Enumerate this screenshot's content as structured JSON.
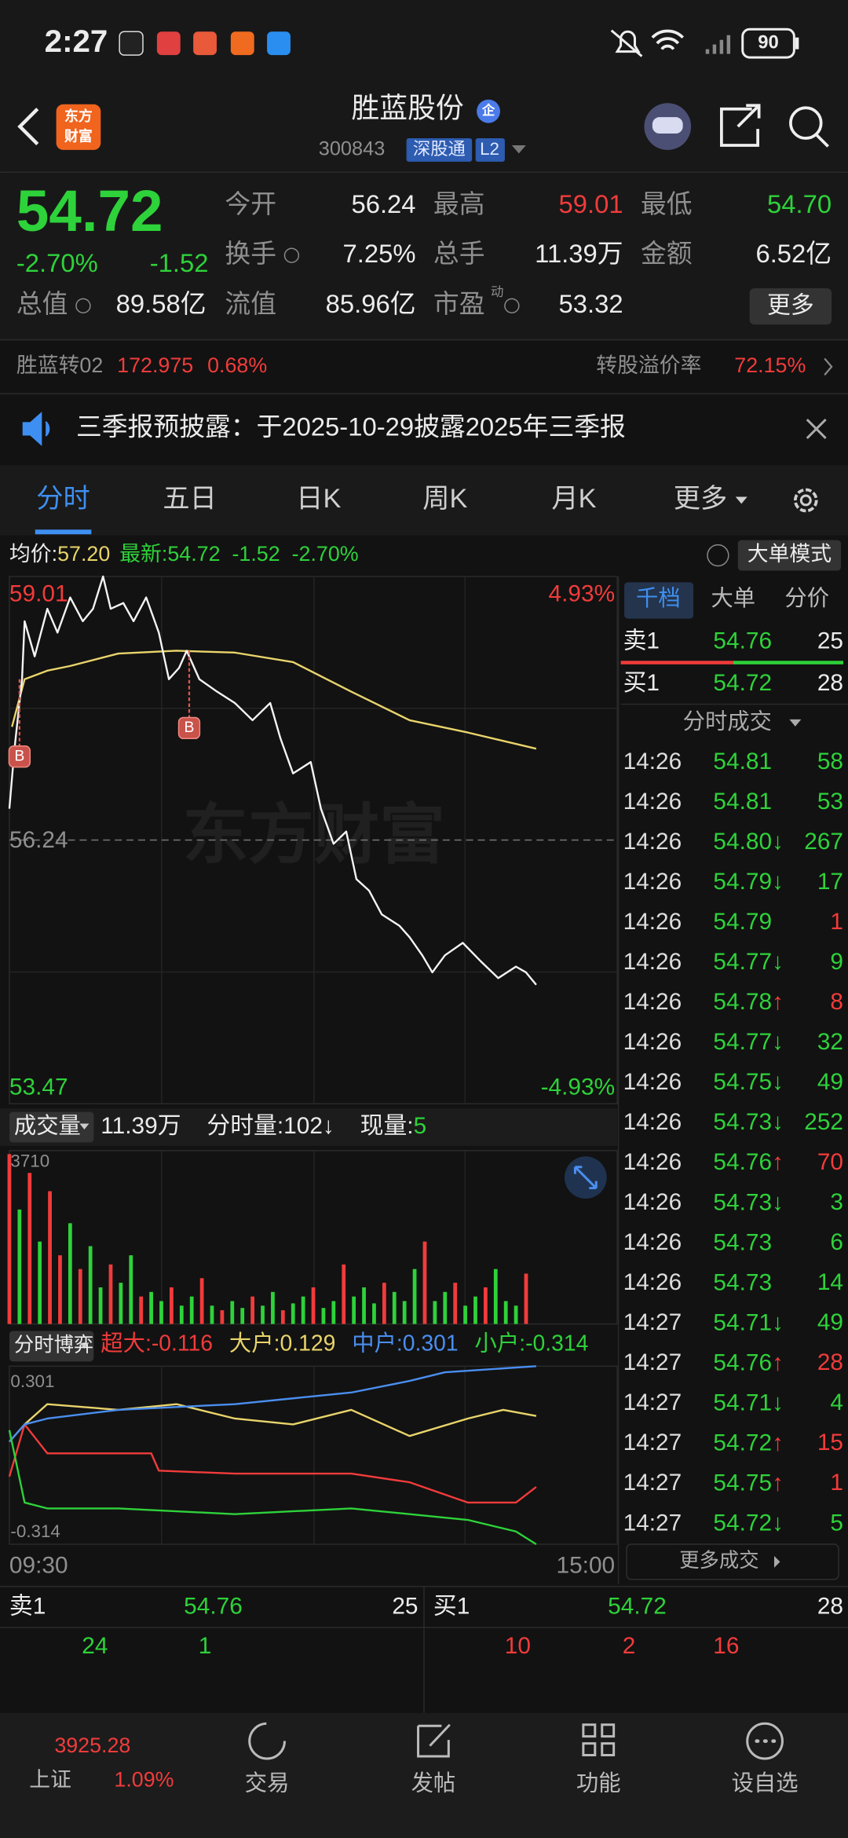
{
  "status_bar": {
    "time": "2:27",
    "battery": "90"
  },
  "header": {
    "logo": [
      "东方",
      "财富"
    ],
    "title": "胜蓝股份",
    "badge": "企",
    "code": "300843",
    "connect": "深股通",
    "level": "L2"
  },
  "quote": {
    "price": "54.72",
    "change_pct": "-2.70%",
    "change": "-1.52",
    "fields": [
      [
        "今开",
        "56.24"
      ],
      [
        "最高",
        "59.01"
      ],
      [
        "最低",
        "54.70"
      ],
      [
        "换手",
        "7.25%"
      ],
      [
        "总手",
        "11.39万"
      ],
      [
        "金额",
        "6.52亿"
      ],
      [
        "总值",
        "89.58亿"
      ],
      [
        "流值",
        "85.96亿"
      ],
      [
        "市盈",
        "53.32"
      ]
    ],
    "pe_sup": "动",
    "more": "更多"
  },
  "bond": {
    "name": "胜蓝转02",
    "price": "172.975",
    "change": "0.68%",
    "premium_label": "转股溢价率",
    "premium": "72.15%"
  },
  "notice": {
    "text": "三季报预披露：于2025-10-29披露2025年三季报"
  },
  "tabs": [
    "分时",
    "五日",
    "日K",
    "周K",
    "月K",
    "更多"
  ],
  "active_tab": 0,
  "info_bar": {
    "avg_label": "均价:",
    "avg": "57.20",
    "last_label": "最新:",
    "last": "54.72",
    "change": "-1.52",
    "change_pct": "-2.70%",
    "mode": "大单模式"
  },
  "price_chart": {
    "type": "line",
    "xlim": [
      0,
      240
    ],
    "ylim": [
      53.47,
      59.01
    ],
    "prev_close": 56.24,
    "pct_labels": [
      "4.93%",
      "-4.93%"
    ],
    "watermark": "东方财富",
    "price": {
      "color": "#f4f4f4",
      "x": [
        0,
        2,
        5,
        6,
        10,
        15,
        19,
        24,
        29,
        33,
        37,
        40,
        45,
        49,
        54,
        59,
        63,
        67,
        70,
        75,
        82,
        89,
        96,
        103,
        107,
        112,
        119,
        123,
        128,
        133,
        137,
        142,
        147,
        154,
        158,
        163,
        167,
        172,
        179,
        186,
        193,
        200,
        204,
        208
      ],
      "values": [
        56.57,
        57.19,
        57.93,
        58.54,
        58.17,
        58.67,
        58.42,
        58.79,
        58.54,
        58.67,
        59.01,
        58.67,
        58.73,
        58.54,
        58.79,
        58.42,
        57.93,
        58.05,
        58.23,
        57.93,
        57.8,
        57.68,
        57.5,
        57.68,
        57.31,
        56.94,
        57.06,
        56.57,
        56.2,
        56.33,
        55.83,
        55.71,
        55.46,
        55.34,
        55.22,
        55.03,
        54.85,
        55.03,
        55.16,
        54.97,
        54.79,
        54.91,
        54.85,
        54.72
      ]
    },
    "average": {
      "color": "#e9d46b",
      "x": [
        1,
        6,
        15,
        24,
        43,
        66,
        89,
        112,
        135,
        158,
        181,
        208
      ],
      "values": [
        57.43,
        57.93,
        58.02,
        58.07,
        58.2,
        58.23,
        58.21,
        58.11,
        57.8,
        57.5,
        57.37,
        57.2
      ]
    },
    "markers": [
      {
        "label": "B",
        "x": 4,
        "value": 57.93
      },
      {
        "label": "B",
        "x": 71,
        "value": 58.23
      }
    ]
  },
  "volume_chart": {
    "type": "bar",
    "label": "成交量",
    "total": "11.39万",
    "period_label": "分时量:",
    "period": "102↓",
    "current_label": "现量:",
    "current": "5",
    "xlim": [
      0,
      240
    ],
    "ylim": [
      0,
      3710
    ],
    "x": [
      0,
      4,
      8,
      12,
      16,
      20,
      24,
      28,
      32,
      36,
      40,
      44,
      48,
      52,
      56,
      60,
      64,
      68,
      72,
      76,
      80,
      84,
      88,
      92,
      96,
      100,
      104,
      108,
      112,
      116,
      120,
      124,
      128,
      132,
      136,
      140,
      144,
      148,
      152,
      156,
      160,
      164,
      168,
      172,
      176,
      180,
      184,
      188,
      192,
      196,
      200,
      204
    ],
    "values": [
      3710,
      2500,
      3300,
      1800,
      2900,
      1500,
      2200,
      1200,
      1700,
      800,
      1300,
      900,
      1500,
      600,
      700,
      500,
      800,
      400,
      600,
      1000,
      400,
      300,
      500,
      350,
      600,
      400,
      700,
      300,
      450,
      600,
      800,
      350,
      500,
      1300,
      600,
      800,
      450,
      900,
      700,
      500,
      1200,
      1800,
      500,
      700,
      900,
      400,
      600,
      800,
      1200,
      500,
      400,
      1100
    ],
    "up": [
      true,
      false,
      true,
      false,
      true,
      true,
      false,
      true,
      false,
      false,
      true,
      false,
      false,
      true,
      false,
      false,
      true,
      false,
      false,
      true,
      false,
      true,
      false,
      false,
      true,
      false,
      false,
      true,
      false,
      false,
      true,
      false,
      false,
      true,
      false,
      false,
      false,
      true,
      false,
      false,
      false,
      true,
      false,
      false,
      true,
      false,
      false,
      true,
      false,
      false,
      false,
      true
    ]
  },
  "flow_chart": {
    "type": "line",
    "label": "分时博弈",
    "xlim": [
      0,
      240
    ],
    "ylim": [
      -0.314,
      0.301
    ],
    "series": [
      {
        "name": "超大:",
        "value": -0.116,
        "color": "#f23b3b",
        "x": [
          0,
          6,
          15,
          33,
          56,
          59,
          89,
          135,
          158,
          181,
          200,
          208
        ],
        "values": [
          -0.08,
          0.1,
          0.0,
          0.0,
          0.0,
          -0.06,
          -0.07,
          -0.07,
          -0.1,
          -0.17,
          -0.17,
          -0.116
        ]
      },
      {
        "name": "大户:",
        "value": 0.129,
        "color": "#e9d46b",
        "x": [
          0,
          6,
          15,
          43,
          66,
          89,
          112,
          135,
          158,
          181,
          195,
          208
        ],
        "values": [
          0.04,
          0.1,
          0.17,
          0.15,
          0.17,
          0.12,
          0.1,
          0.15,
          0.06,
          0.12,
          0.15,
          0.129
        ]
      },
      {
        "name": "中户:",
        "value": 0.301,
        "color": "#4a8ef0",
        "x": [
          0,
          6,
          15,
          43,
          89,
          135,
          158,
          172,
          208
        ],
        "values": [
          0.04,
          0.1,
          0.12,
          0.15,
          0.17,
          0.21,
          0.25,
          0.28,
          0.301
        ]
      },
      {
        "name": "小户:",
        "value": -0.314,
        "color": "#2ed23a",
        "x": [
          0,
          6,
          15,
          43,
          89,
          135,
          158,
          181,
          200,
          208
        ],
        "values": [
          0.08,
          -0.17,
          -0.19,
          -0.19,
          -0.21,
          -0.19,
          -0.21,
          -0.23,
          -0.27,
          -0.314
        ]
      }
    ]
  },
  "time_axis": [
    "09:30",
    "15:00"
  ],
  "order_book": {
    "tabs": [
      "千档",
      "大单",
      "分价"
    ],
    "active_tab": 0,
    "ask": [
      "卖1",
      "54.76",
      "25"
    ],
    "bid": [
      "买1",
      "54.72",
      "28"
    ],
    "trades_title": "分时成交",
    "trades": [
      [
        "14:26",
        "54.81",
        null,
        "58",
        "sell"
      ],
      [
        "14:26",
        "54.81",
        null,
        "53",
        "sell"
      ],
      [
        "14:26",
        "54.80",
        "↓",
        "267",
        "sell"
      ],
      [
        "14:26",
        "54.79",
        "↓",
        "17",
        "sell"
      ],
      [
        "14:26",
        "54.79",
        null,
        "1",
        "buy"
      ],
      [
        "14:26",
        "54.77",
        "↓",
        "9",
        "sell"
      ],
      [
        "14:26",
        "54.78",
        "↑",
        "8",
        "buy"
      ],
      [
        "14:26",
        "54.77",
        "↓",
        "32",
        "sell"
      ],
      [
        "14:26",
        "54.75",
        "↓",
        "49",
        "sell"
      ],
      [
        "14:26",
        "54.73",
        "↓",
        "252",
        "sell"
      ],
      [
        "14:26",
        "54.76",
        "↑",
        "70",
        "buy"
      ],
      [
        "14:26",
        "54.73",
        "↓",
        "3",
        "sell"
      ],
      [
        "14:26",
        "54.73",
        null,
        "6",
        "sell"
      ],
      [
        "14:26",
        "54.73",
        null,
        "14",
        "sell"
      ],
      [
        "14:27",
        "54.71",
        "↓",
        "49",
        "sell"
      ],
      [
        "14:27",
        "54.76",
        "↑",
        "28",
        "buy"
      ],
      [
        "14:27",
        "54.71",
        "↓",
        "4",
        "sell"
      ],
      [
        "14:27",
        "54.72",
        "↑",
        "15",
        "buy"
      ],
      [
        "14:27",
        "54.75",
        "↑",
        "1",
        "buy"
      ],
      [
        "14:27",
        "54.72",
        "↓",
        "5",
        "sell"
      ]
    ],
    "more": "更多成交"
  },
  "bottom_book": {
    "ask": [
      "卖1",
      "54.76",
      "25"
    ],
    "bid": [
      "买1",
      "54.72",
      "28"
    ],
    "ask_queue": [
      "24",
      "1"
    ],
    "bid_queue": [
      "10",
      "2",
      "16"
    ]
  },
  "nav": {
    "index_value": "3925.28",
    "index_name": "上证",
    "index_change": "1.09%",
    "items": [
      "交易",
      "发帖",
      "功能",
      "设自选"
    ]
  }
}
